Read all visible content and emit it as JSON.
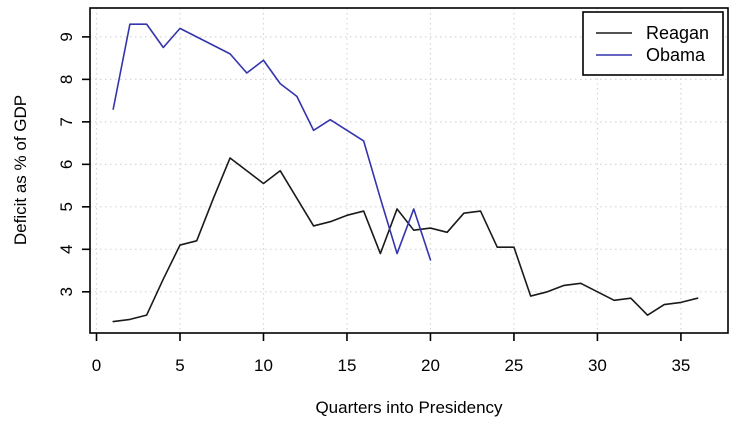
{
  "chart_data": {
    "type": "line",
    "title": "",
    "xlabel": "Quarters into Presidency",
    "ylabel": "Deficit as % of GDP",
    "x_ticks": [
      0,
      5,
      10,
      15,
      20,
      25,
      30,
      35
    ],
    "y_ticks": [
      3,
      4,
      5,
      6,
      7,
      8,
      9
    ],
    "xlim": [
      -0.39,
      37.82
    ],
    "ylim": [
      2.03,
      9.68
    ],
    "grid": true,
    "grid_color": "#d6d6d6",
    "axis_color": "#000000",
    "background": "#ffffff",
    "legend_position": "top-right",
    "series": [
      {
        "name": "Reagan",
        "color": "#1a1a1a",
        "x_start": 1,
        "values": [
          2.3,
          2.35,
          2.45,
          3.3,
          4.1,
          4.2,
          5.2,
          6.15,
          5.85,
          5.55,
          5.85,
          5.2,
          4.55,
          4.65,
          4.8,
          4.9,
          3.9,
          4.95,
          4.45,
          4.5,
          4.4,
          4.85,
          4.9,
          4.05,
          4.05,
          2.9,
          3.0,
          3.15,
          3.2,
          3.0,
          2.8,
          2.85,
          2.45,
          2.7,
          2.75,
          2.85
        ]
      },
      {
        "name": "Obama",
        "color": "#3434ad",
        "x_start": 1,
        "values": [
          7.3,
          9.3,
          9.3,
          8.75,
          9.2,
          9.0,
          8.8,
          8.6,
          8.15,
          8.45,
          7.9,
          7.6,
          6.8,
          7.05,
          6.8,
          6.55,
          5.2,
          3.9,
          4.95,
          3.75
        ]
      }
    ]
  }
}
